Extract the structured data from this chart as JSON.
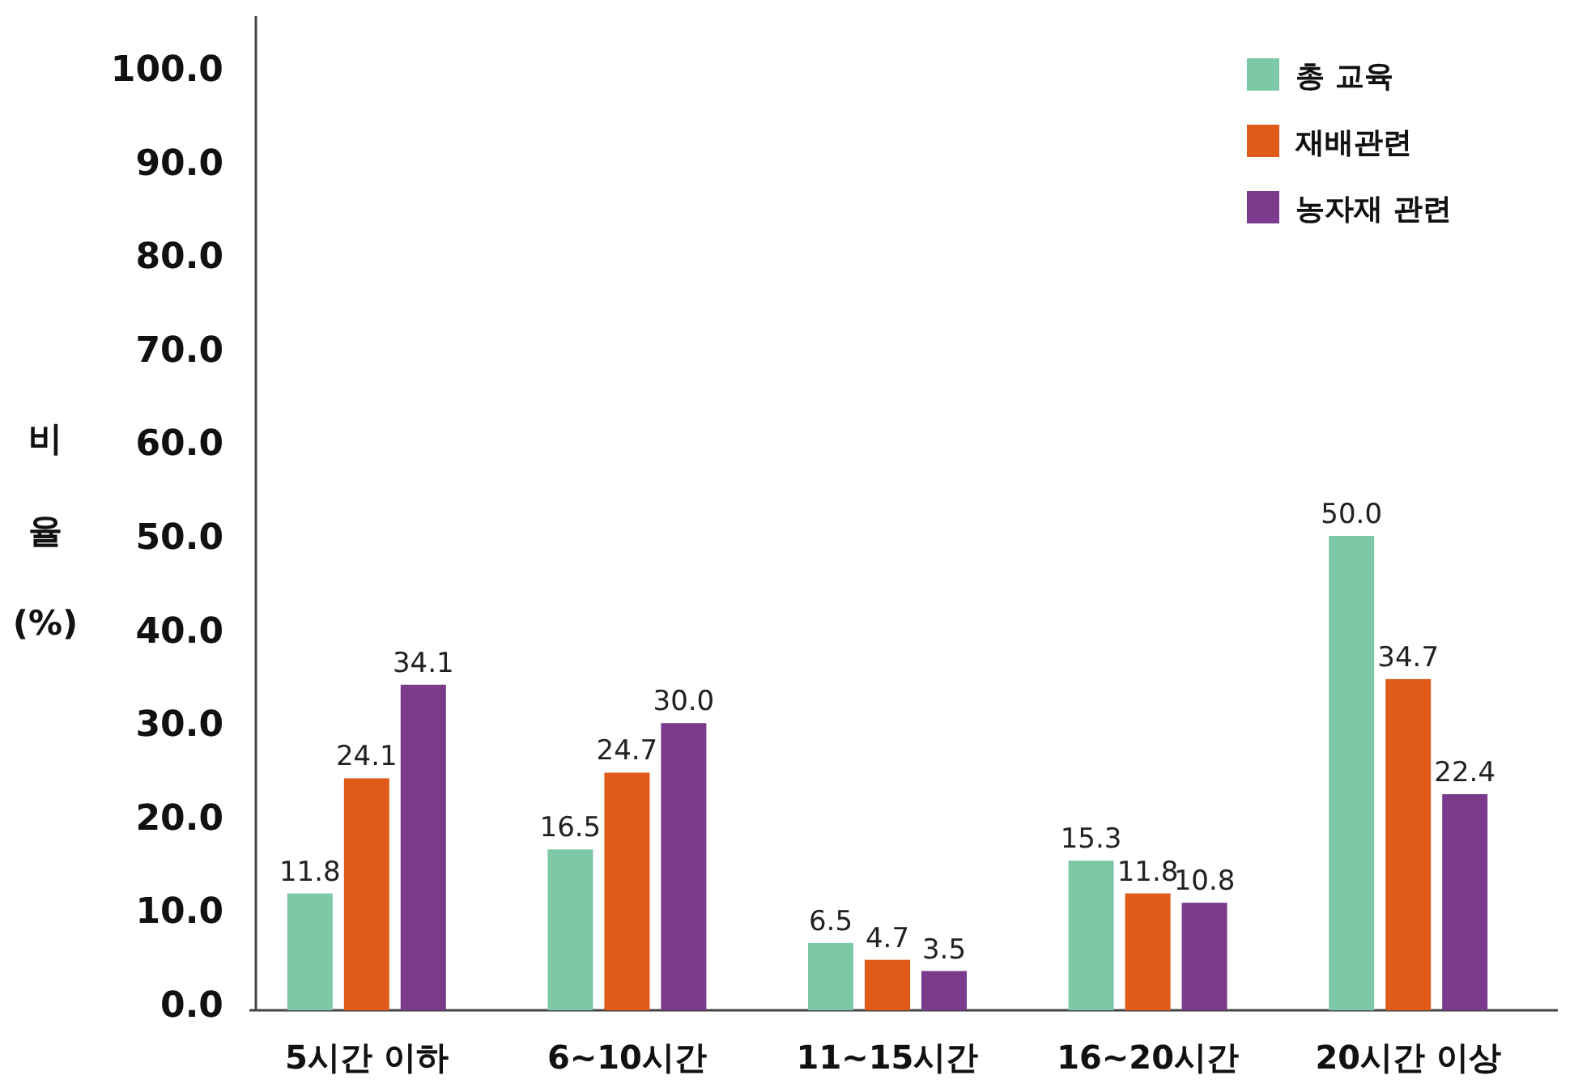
{
  "chart_data": {
    "type": "bar",
    "ylabel": "비율 (%)",
    "categories": [
      "5시간 이하",
      "6~10시간",
      "11~15시간",
      "16~20시간",
      "20시간 이상"
    ],
    "series": [
      {
        "name": "총 교육",
        "color": "#7dc8a6",
        "values": [
          11.8,
          16.5,
          6.5,
          15.3,
          50.0
        ],
        "value_labels": [
          "11.8",
          "16.5",
          "6.5",
          "15.3",
          "50.0"
        ]
      },
      {
        "name": "재배관련",
        "color": "#e05a1a",
        "values": [
          24.1,
          24.7,
          4.7,
          11.8,
          34.7
        ],
        "value_labels": [
          "24.1",
          "24.7",
          "4.7",
          "11.8",
          "34.7"
        ]
      },
      {
        "name": "농자재 관련",
        "color": "#7a3b8c",
        "values": [
          34.1,
          30.0,
          3.5,
          10.8,
          22.4
        ],
        "value_labels": [
          "34.1",
          "30.0",
          "3.5",
          "10.8",
          "22.4"
        ]
      }
    ],
    "ylim": [
      0,
      100
    ],
    "yticks": [
      {
        "value": 0,
        "label": "0.0"
      },
      {
        "value": 10,
        "label": "10.0"
      },
      {
        "value": 20,
        "label": "20.0"
      },
      {
        "value": 30,
        "label": "30.0"
      },
      {
        "value": 40,
        "label": "40.0"
      },
      {
        "value": 50,
        "label": "50.0"
      },
      {
        "value": 60,
        "label": "60.0"
      },
      {
        "value": 70,
        "label": "70.0"
      },
      {
        "value": 80,
        "label": "80.0"
      },
      {
        "value": 90,
        "label": "90.0"
      },
      {
        "value": 100,
        "label": "100.0"
      }
    ],
    "grid": false,
    "legend": "top right"
  }
}
